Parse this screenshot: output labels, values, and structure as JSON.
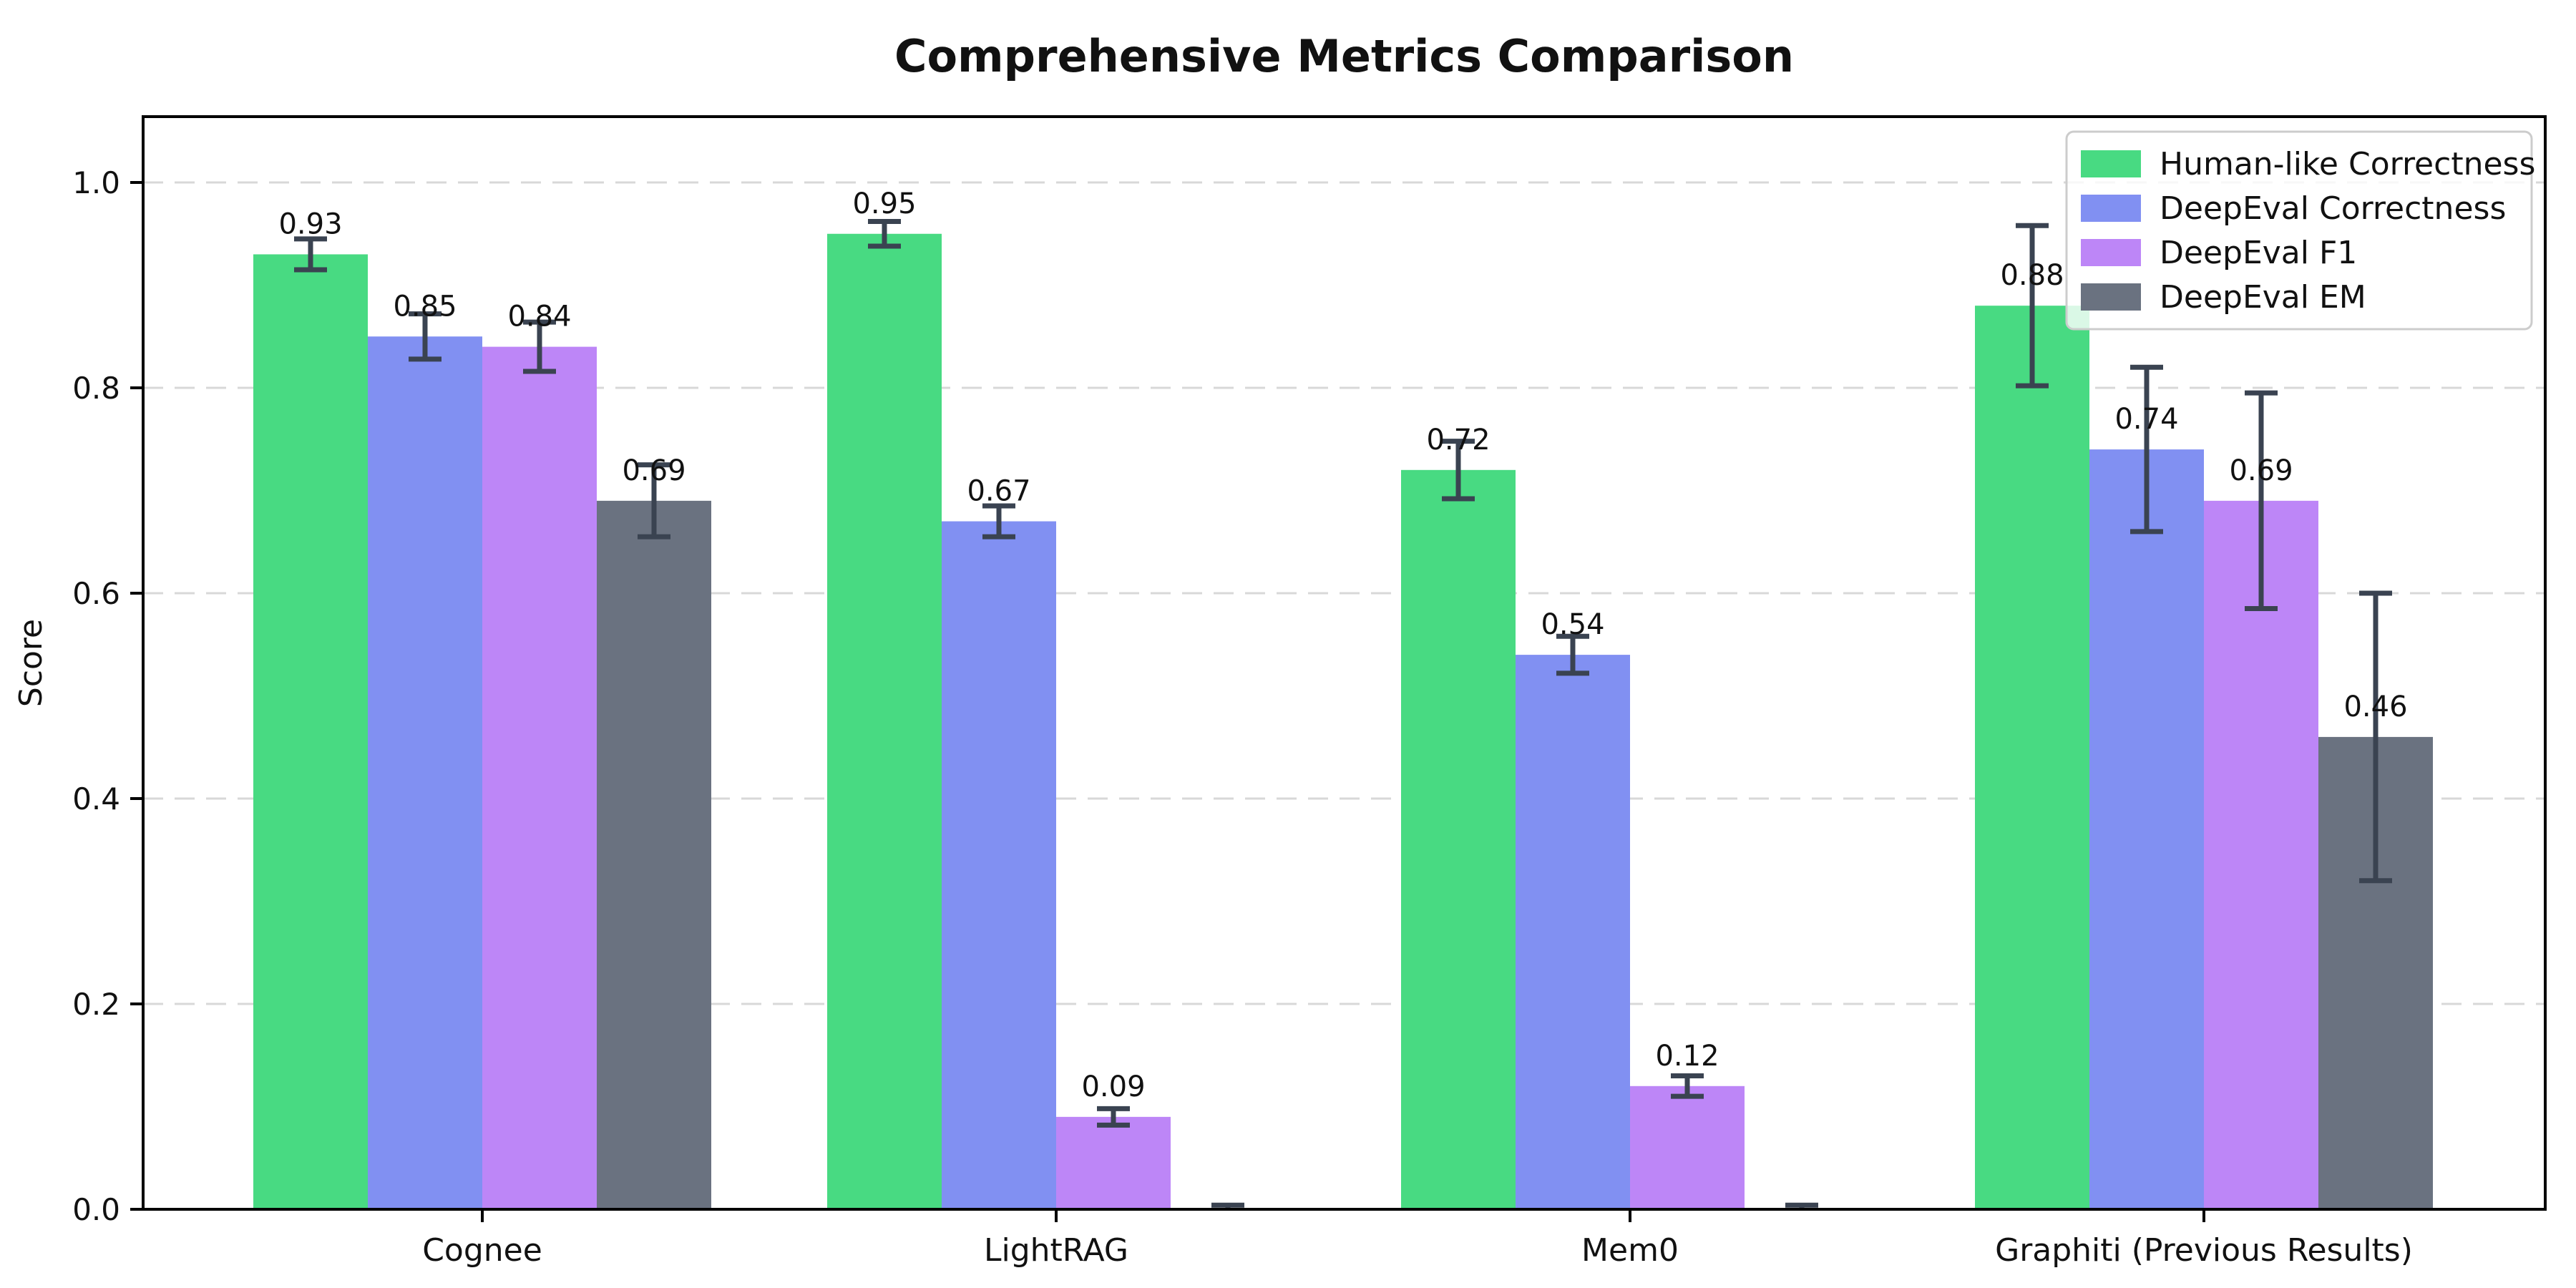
{
  "figure": {
    "background": "#ffffff"
  },
  "chart_data": {
    "type": "bar",
    "title": "Comprehensive Metrics Comparison",
    "xlabel": "",
    "ylabel": "Score",
    "categories": [
      "Cognee",
      "LightRAG",
      "Mem0",
      "Graphiti (Previous Results)"
    ],
    "series": [
      {
        "name": "Human-like Correctness",
        "color": "#48da82",
        "values": [
          0.93,
          0.95,
          0.72,
          0.88
        ],
        "errors": [
          0.015,
          0.012,
          0.028,
          0.078
        ],
        "labels": [
          "0.93",
          "0.95",
          "0.72",
          "0.88"
        ]
      },
      {
        "name": "DeepEval Correctness",
        "color": "#8190f2",
        "values": [
          0.85,
          0.67,
          0.54,
          0.74
        ],
        "errors": [
          0.022,
          0.015,
          0.018,
          0.08
        ],
        "labels": [
          "0.85",
          "0.67",
          "0.54",
          "0.74"
        ]
      },
      {
        "name": "DeepEval F1",
        "color": "#bd86f7",
        "values": [
          0.84,
          0.09,
          0.12,
          0.69
        ],
        "errors": [
          0.024,
          0.008,
          0.01,
          0.105
        ],
        "labels": [
          "0.84",
          "0.09",
          "0.12",
          "0.69"
        ]
      },
      {
        "name": "DeepEval EM",
        "color": "#6a7280",
        "values": [
          0.69,
          0.0,
          0.0,
          0.46
        ],
        "errors": [
          0.035,
          0.004,
          0.004,
          0.14
        ],
        "labels": [
          "0.69",
          "",
          "",
          "0.46"
        ]
      }
    ],
    "yticks": [
      "0.0",
      "0.2",
      "0.4",
      "0.6",
      "0.8",
      "1.0"
    ],
    "ylim": [
      0,
      1.064
    ],
    "grid": "horizontal-dashed",
    "grid_color": "#d8d8d8",
    "error_color": "#3a4351",
    "legend_position": "upper right"
  }
}
